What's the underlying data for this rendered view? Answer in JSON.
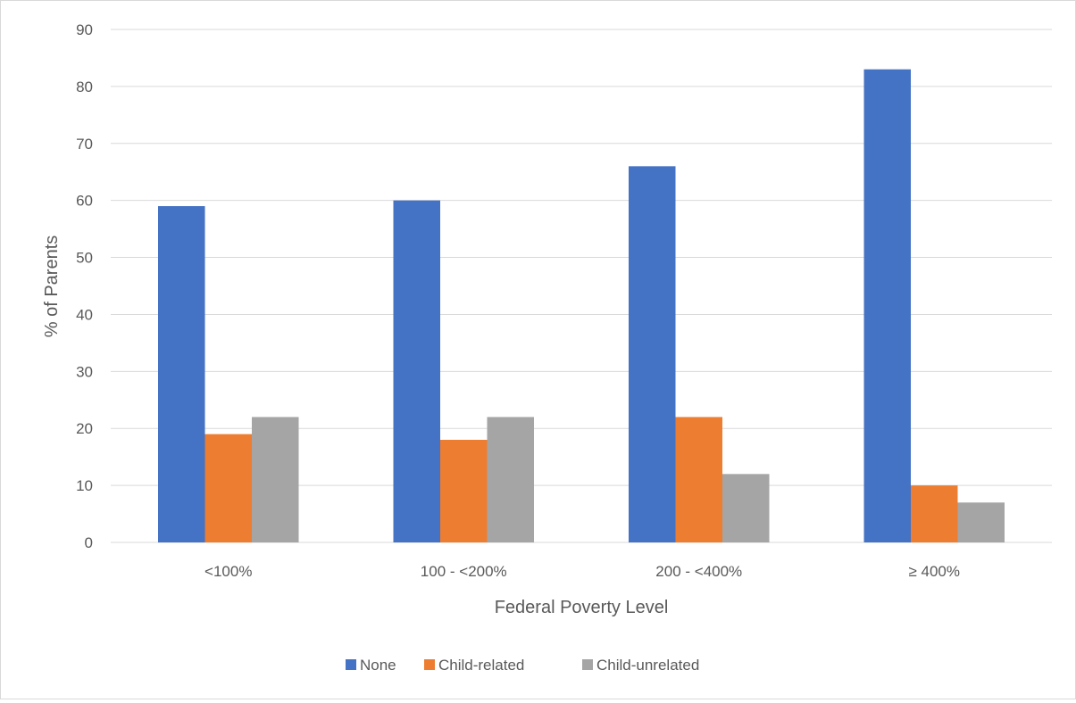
{
  "chart_data": {
    "type": "bar",
    "title": "",
    "xlabel": "Federal Poverty Level",
    "ylabel": "% of Parents",
    "categories": [
      "<100%",
      "100 - <200%",
      "200 - <400%",
      "≥ 400%"
    ],
    "series": [
      {
        "name": "None",
        "color": "#4472C4",
        "values": [
          59,
          60,
          66,
          83
        ]
      },
      {
        "name": "Child-related",
        "color": "#ED7D31",
        "values": [
          19,
          18,
          22,
          10
        ]
      },
      {
        "name": "Child-unrelated",
        "color": "#A5A5A5",
        "values": [
          22,
          22,
          12,
          7
        ]
      }
    ],
    "ylim": [
      0,
      90
    ],
    "yticks": [
      0,
      10,
      20,
      30,
      40,
      50,
      60,
      70,
      80,
      90
    ],
    "grid": true,
    "legend_position": "bottom",
    "colors": {
      "gridline": "#d9d9d9",
      "text": "#595959"
    }
  }
}
